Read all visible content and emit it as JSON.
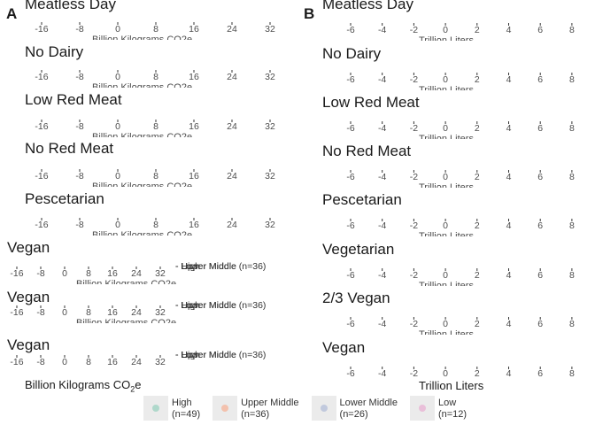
{
  "chart_data": [
    {
      "panel": "A",
      "type": "scatter",
      "xlabel_parts": {
        "main": "Billion Kilograms CO",
        "sub": "2",
        "tail": "e"
      },
      "facet_label_clipped": "Billion Kilograms CO2e",
      "facets": [
        {
          "title": "Meatless Day",
          "ticks": [
            -16,
            -8,
            0,
            8,
            16,
            24,
            32
          ]
        },
        {
          "title": "No Dairy",
          "ticks": [
            -16,
            -8,
            0,
            8,
            16,
            24,
            32
          ]
        },
        {
          "title": "Low Red Meat",
          "ticks": [
            -16,
            -8,
            0,
            8,
            16,
            24,
            32
          ]
        },
        {
          "title": "No Red Meat",
          "ticks": [
            -16,
            -8,
            0,
            8,
            16,
            24,
            32
          ]
        },
        {
          "title": "Pescetarian",
          "ticks": [
            -16,
            -8,
            0,
            8,
            16,
            24,
            32
          ]
        },
        {
          "title": "Vegan",
          "ticks": [
            -16,
            -8,
            0,
            8,
            16,
            24,
            32
          ]
        },
        {
          "title": "Vegan",
          "ticks": [
            -16,
            -8,
            0,
            8,
            16,
            24,
            32
          ]
        },
        {
          "title": "Vegan",
          "ticks": [
            -16,
            -8,
            0,
            8,
            16,
            24,
            32
          ]
        }
      ],
      "series": [
        {
          "name": "High (n=49)",
          "color": "#66c2a5"
        },
        {
          "name": "Upper Middle (n=36)",
          "color": "#fc8d62"
        },
        {
          "name": "Lower Middle (n=26)",
          "color": "#8da0cb"
        },
        {
          "name": "Low (n=12)",
          "color": "#e78ac3"
        }
      ],
      "overlapping_labels": [
        "High",
        "Upper Middle (n=36)",
        "Lower Middle",
        "Low"
      ]
    },
    {
      "panel": "B",
      "type": "scatter",
      "xlabel": "Trillion Liters",
      "facet_label_clipped": "Trillion Liters",
      "facets": [
        {
          "title": "Meatless Day",
          "ticks": [
            -6,
            -4,
            -2,
            0,
            2,
            4,
            6,
            8
          ]
        },
        {
          "title": "No Dairy",
          "ticks": [
            -6,
            -4,
            -2,
            0,
            2,
            4,
            6,
            8
          ]
        },
        {
          "title": "Low Red Meat",
          "ticks": [
            -6,
            -4,
            -2,
            0,
            2,
            4,
            6,
            8
          ]
        },
        {
          "title": "No Red Meat",
          "ticks": [
            -6,
            -4,
            -2,
            0,
            2,
            4,
            6,
            8
          ]
        },
        {
          "title": "Pescetarian",
          "ticks": [
            -6,
            -4,
            -2,
            0,
            2,
            4,
            6,
            8
          ]
        },
        {
          "title": "Vegetarian",
          "ticks": [
            -6,
            -4,
            -2,
            0,
            2,
            4,
            6,
            8
          ]
        },
        {
          "title": "2/3 Vegan",
          "ticks": [
            -6,
            -4,
            -2,
            0,
            2,
            4,
            6,
            8
          ]
        },
        {
          "title": "Vegan",
          "ticks": [
            -6,
            -4,
            -2,
            0,
            2,
            4,
            6,
            8
          ]
        }
      ]
    }
  ],
  "legend": {
    "items": [
      {
        "label": "High",
        "count": "(n=49)",
        "color": "#66c2a5"
      },
      {
        "label": "Upper Middle",
        "count": "(n=36)",
        "color": "#fc8d62"
      },
      {
        "label": "Lower Middle",
        "count": "(n=26)",
        "color": "#8da0cb"
      },
      {
        "label": "Low",
        "count": "(n=12)",
        "color": "#e78ac3"
      }
    ]
  }
}
